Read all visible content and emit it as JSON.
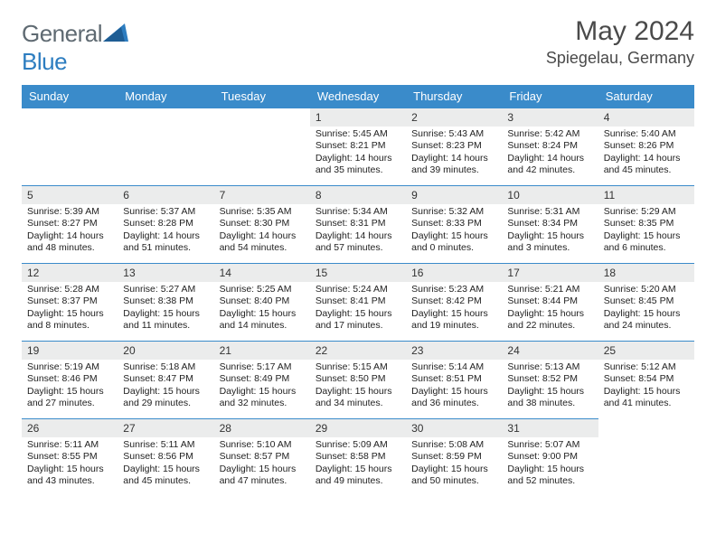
{
  "logo": {
    "word1": "General",
    "word2": "Blue"
  },
  "title": "May 2024",
  "location": "Spiegelau, Germany",
  "colors": {
    "header_bg": "#3a8bca",
    "header_text": "#ffffff",
    "daynum_bg": "#ebecec",
    "border": "#3a8bca",
    "logo_gray": "#5f6a72",
    "logo_blue": "#2d7dc0"
  },
  "weekdays": [
    "Sunday",
    "Monday",
    "Tuesday",
    "Wednesday",
    "Thursday",
    "Friday",
    "Saturday"
  ],
  "weeks": [
    [
      null,
      null,
      null,
      {
        "d": "1",
        "sr": "5:45 AM",
        "ss": "8:21 PM",
        "dl": "14 hours and 35 minutes."
      },
      {
        "d": "2",
        "sr": "5:43 AM",
        "ss": "8:23 PM",
        "dl": "14 hours and 39 minutes."
      },
      {
        "d": "3",
        "sr": "5:42 AM",
        "ss": "8:24 PM",
        "dl": "14 hours and 42 minutes."
      },
      {
        "d": "4",
        "sr": "5:40 AM",
        "ss": "8:26 PM",
        "dl": "14 hours and 45 minutes."
      }
    ],
    [
      {
        "d": "5",
        "sr": "5:39 AM",
        "ss": "8:27 PM",
        "dl": "14 hours and 48 minutes."
      },
      {
        "d": "6",
        "sr": "5:37 AM",
        "ss": "8:28 PM",
        "dl": "14 hours and 51 minutes."
      },
      {
        "d": "7",
        "sr": "5:35 AM",
        "ss": "8:30 PM",
        "dl": "14 hours and 54 minutes."
      },
      {
        "d": "8",
        "sr": "5:34 AM",
        "ss": "8:31 PM",
        "dl": "14 hours and 57 minutes."
      },
      {
        "d": "9",
        "sr": "5:32 AM",
        "ss": "8:33 PM",
        "dl": "15 hours and 0 minutes."
      },
      {
        "d": "10",
        "sr": "5:31 AM",
        "ss": "8:34 PM",
        "dl": "15 hours and 3 minutes."
      },
      {
        "d": "11",
        "sr": "5:29 AM",
        "ss": "8:35 PM",
        "dl": "15 hours and 6 minutes."
      }
    ],
    [
      {
        "d": "12",
        "sr": "5:28 AM",
        "ss": "8:37 PM",
        "dl": "15 hours and 8 minutes."
      },
      {
        "d": "13",
        "sr": "5:27 AM",
        "ss": "8:38 PM",
        "dl": "15 hours and 11 minutes."
      },
      {
        "d": "14",
        "sr": "5:25 AM",
        "ss": "8:40 PM",
        "dl": "15 hours and 14 minutes."
      },
      {
        "d": "15",
        "sr": "5:24 AM",
        "ss": "8:41 PM",
        "dl": "15 hours and 17 minutes."
      },
      {
        "d": "16",
        "sr": "5:23 AM",
        "ss": "8:42 PM",
        "dl": "15 hours and 19 minutes."
      },
      {
        "d": "17",
        "sr": "5:21 AM",
        "ss": "8:44 PM",
        "dl": "15 hours and 22 minutes."
      },
      {
        "d": "18",
        "sr": "5:20 AM",
        "ss": "8:45 PM",
        "dl": "15 hours and 24 minutes."
      }
    ],
    [
      {
        "d": "19",
        "sr": "5:19 AM",
        "ss": "8:46 PM",
        "dl": "15 hours and 27 minutes."
      },
      {
        "d": "20",
        "sr": "5:18 AM",
        "ss": "8:47 PM",
        "dl": "15 hours and 29 minutes."
      },
      {
        "d": "21",
        "sr": "5:17 AM",
        "ss": "8:49 PM",
        "dl": "15 hours and 32 minutes."
      },
      {
        "d": "22",
        "sr": "5:15 AM",
        "ss": "8:50 PM",
        "dl": "15 hours and 34 minutes."
      },
      {
        "d": "23",
        "sr": "5:14 AM",
        "ss": "8:51 PM",
        "dl": "15 hours and 36 minutes."
      },
      {
        "d": "24",
        "sr": "5:13 AM",
        "ss": "8:52 PM",
        "dl": "15 hours and 38 minutes."
      },
      {
        "d": "25",
        "sr": "5:12 AM",
        "ss": "8:54 PM",
        "dl": "15 hours and 41 minutes."
      }
    ],
    [
      {
        "d": "26",
        "sr": "5:11 AM",
        "ss": "8:55 PM",
        "dl": "15 hours and 43 minutes."
      },
      {
        "d": "27",
        "sr": "5:11 AM",
        "ss": "8:56 PM",
        "dl": "15 hours and 45 minutes."
      },
      {
        "d": "28",
        "sr": "5:10 AM",
        "ss": "8:57 PM",
        "dl": "15 hours and 47 minutes."
      },
      {
        "d": "29",
        "sr": "5:09 AM",
        "ss": "8:58 PM",
        "dl": "15 hours and 49 minutes."
      },
      {
        "d": "30",
        "sr": "5:08 AM",
        "ss": "8:59 PM",
        "dl": "15 hours and 50 minutes."
      },
      {
        "d": "31",
        "sr": "5:07 AM",
        "ss": "9:00 PM",
        "dl": "15 hours and 52 minutes."
      },
      null
    ]
  ],
  "labels": {
    "sunrise": "Sunrise:",
    "sunset": "Sunset:",
    "daylight": "Daylight:"
  }
}
